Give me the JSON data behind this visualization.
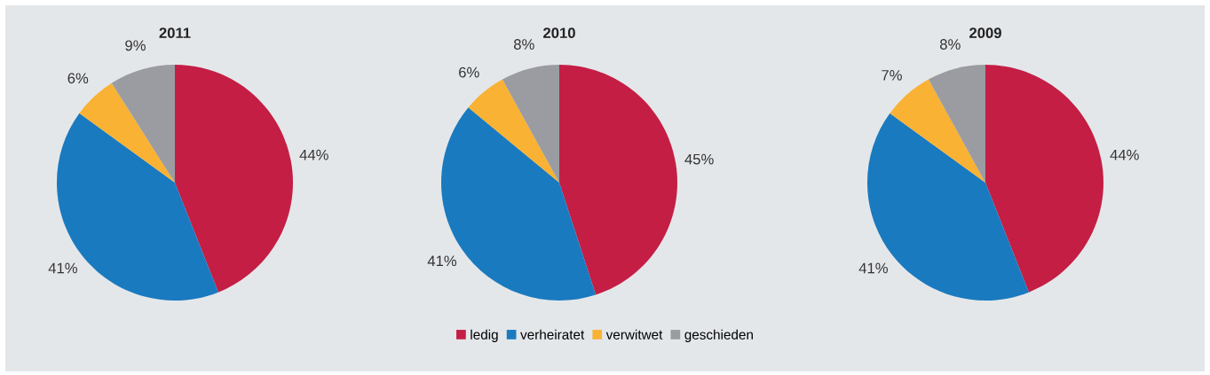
{
  "chart_data": [
    {
      "type": "pie",
      "title": "2011",
      "categories": [
        "ledig",
        "verheiratet",
        "verwitwet",
        "geschieden"
      ],
      "values": [
        44,
        41,
        6,
        9
      ],
      "value_labels": [
        "44%",
        "41%",
        "6%",
        "9%"
      ],
      "colors": [
        "#c41e45",
        "#1a7abf",
        "#f9b233",
        "#9a9ca1"
      ],
      "legend": "bottom"
    },
    {
      "type": "pie",
      "title": "2010",
      "values": [
        45,
        41,
        6,
        8
      ],
      "value_labels": [
        "45%",
        "41%",
        "6%",
        "8%"
      ],
      "colors": [
        "#c41e45",
        "#1a7abf",
        "#f9b233",
        "#9a9ca1"
      ]
    },
    {
      "type": "pie",
      "title": "2009",
      "values": [
        44,
        41,
        7,
        8
      ],
      "value_labels": [
        "44%",
        "41%",
        "7%",
        "8%"
      ],
      "colors": [
        "#c41e45",
        "#1a7abf",
        "#f9b233",
        "#9a9ca1"
      ]
    }
  ]
}
